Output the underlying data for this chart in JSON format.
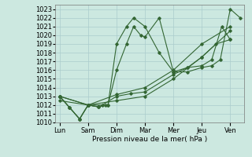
{
  "background_color": "#cce8e0",
  "grid_color": "#aacccc",
  "line_color": "#336633",
  "x_labels": [
    "Lun",
    "Sam",
    "Dim",
    "Mar",
    "Mer",
    "Jeu",
    "Ven"
  ],
  "x_positions": [
    0,
    1,
    2,
    3,
    4,
    5,
    6
  ],
  "ylim": [
    1010,
    1023.5
  ],
  "yticks": [
    1010,
    1011,
    1012,
    1013,
    1014,
    1015,
    1016,
    1017,
    1018,
    1019,
    1020,
    1021,
    1022,
    1023
  ],
  "xlabel": "Pression niveau de la mer( hPa )",
  "line1_x": [
    0,
    0.35,
    0.7,
    1.0,
    1.35,
    1.6
  ],
  "line1_y": [
    1013.0,
    1011.7,
    1010.4,
    1012.0,
    1011.8,
    1012.0
  ],
  "line2_x": [
    0,
    0.35,
    0.7,
    1.0,
    1.35,
    1.7,
    2.0,
    2.35,
    2.6,
    3.0,
    3.5,
    4.0,
    4.5,
    5.0,
    5.35,
    5.65,
    6.0,
    6.35
  ],
  "line2_y": [
    1013.0,
    1011.7,
    1010.4,
    1012.0,
    1011.8,
    1012.0,
    1019.0,
    1021.0,
    1022.0,
    1021.0,
    1018.0,
    1015.8,
    1015.8,
    1016.3,
    1016.5,
    1017.2,
    1023.0,
    1022.0
  ],
  "line3_x": [
    0,
    1.0,
    1.5,
    2.0,
    2.5,
    3.0,
    4.0,
    4.5,
    5.0,
    5.5,
    6.0
  ],
  "line3_y": [
    1013.0,
    1012.0,
    1012.0,
    1013.0,
    1013.3,
    1013.5,
    1015.5,
    1016.3,
    1017.5,
    1019.0,
    1019.5
  ],
  "line4_x": [
    0,
    1.0,
    2.0,
    3.0,
    4.0,
    5.0,
    6.0
  ],
  "line4_y": [
    1012.5,
    1012.0,
    1012.5,
    1013.0,
    1015.0,
    1017.5,
    1020.5
  ],
  "line5_x": [
    0,
    1.0,
    2.0,
    3.0,
    4.0,
    5.0,
    6.0
  ],
  "line5_y": [
    1013.0,
    1012.0,
    1013.2,
    1014.0,
    1016.0,
    1019.0,
    1021.0
  ],
  "line6_x": [
    0,
    0.35,
    0.7,
    1.0,
    1.35,
    1.7,
    2.0,
    2.35,
    2.6,
    2.85,
    3.0,
    3.5,
    4.0,
    4.5,
    5.0,
    5.35,
    5.7,
    6.0
  ],
  "line6_y": [
    1013.0,
    1011.7,
    1010.4,
    1012.0,
    1011.8,
    1012.0,
    1016.0,
    1019.0,
    1021.0,
    1020.0,
    1019.8,
    1022.0,
    1015.8,
    1016.3,
    1016.5,
    1017.2,
    1021.0,
    1019.5
  ]
}
